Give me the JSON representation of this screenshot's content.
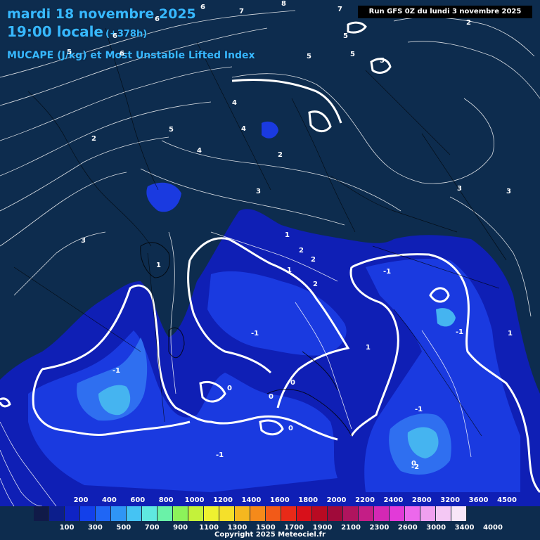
{
  "header": {
    "date_line": "mardi 18 novembre 2025",
    "time_line": "19:00 locale",
    "lead_time": "(+378h)",
    "params_line": "MUCAPE (J/kg) et Most Unstable Lifted Index"
  },
  "run_info": "Run GFS 0Z du lundi 3 novembre 2025",
  "colors": {
    "background": "#0d2c4e",
    "title": "#37b8ff",
    "contour": "#ffffff",
    "cape_200": "#0f1fb5",
    "cape_400": "#1a3ae0",
    "cape_600": "#2f6ff0",
    "cape_800": "#45b4f0"
  },
  "legend": {
    "top_labels": [
      "200",
      "400",
      "600",
      "800",
      "1000",
      "1200",
      "1400",
      "1600",
      "1800",
      "2000",
      "2200",
      "2400",
      "2800",
      "3200",
      "3600",
      "4500"
    ],
    "bottom_labels": [
      "100",
      "300",
      "500",
      "700",
      "900",
      "1100",
      "1300",
      "1500",
      "1700",
      "1900",
      "2100",
      "2300",
      "2600",
      "3000",
      "3400",
      "4000"
    ],
    "swatches": [
      "#101a48",
      "#0c1e8c",
      "#0f23c4",
      "#1340ea",
      "#1f66f5",
      "#2f95f5",
      "#45c3f3",
      "#5fe8e0",
      "#6af2a8",
      "#8cf25a",
      "#c4f23a",
      "#eef230",
      "#f5e02a",
      "#f5b71f",
      "#f58a1a",
      "#f25a18",
      "#e82a18",
      "#d8101a",
      "#b80a22",
      "#a00a3a",
      "#b0145e",
      "#c41e86",
      "#d428b4",
      "#e23ad8",
      "#ec68ec",
      "#f0a0f0",
      "#f4c8f4",
      "#f8e6f8"
    ]
  },
  "contour_labels": [
    "8",
    "7",
    "7",
    "6",
    "6",
    "6",
    "6",
    "5",
    "5",
    "5",
    "5",
    "5",
    "5",
    "4",
    "4",
    "4",
    "3",
    "3",
    "3",
    "3",
    "2",
    "2",
    "2",
    "2",
    "2",
    "2",
    "1",
    "1",
    "1",
    "1",
    "1",
    "0",
    "0",
    "0",
    "0",
    "0",
    "-1",
    "-1",
    "-1",
    "-1",
    "-1",
    "-1",
    "-2"
  ],
  "copyright": "Copyright 2025 Meteociel.fr"
}
